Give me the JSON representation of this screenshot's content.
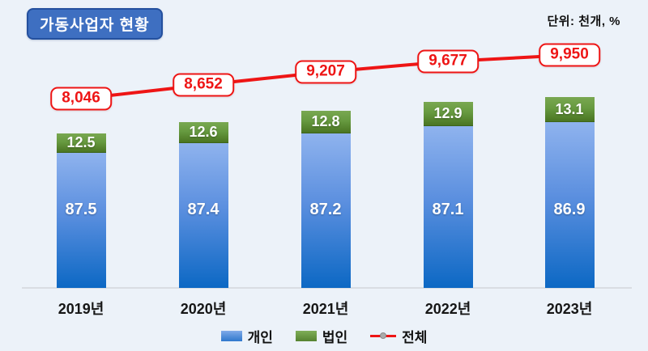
{
  "header": {
    "title": "가동사업자 현황",
    "unit_label": "단위: 천개, %"
  },
  "colors": {
    "background": "#ecf2f9",
    "title_bg": "#3e6fc1",
    "title_border": "#24509e",
    "bar_blue_top": "#8fb3ee",
    "bar_blue_bottom": "#0c68c4",
    "bar_green_top": "#79a851",
    "bar_green_bottom": "#4a7522",
    "line_red": "#ee1515",
    "axis_gray": "#d9dde3",
    "legend_marker_dot": "#ababab"
  },
  "chart_data": {
    "type": "bar",
    "subtype": "stacked-percentage-bars-with-total-line",
    "title": "가동사업자 현황",
    "unit_note": "단위: 천개, %",
    "categories": [
      "2019년",
      "2020년",
      "2021년",
      "2022년",
      "2023년"
    ],
    "series": [
      {
        "name": "개인",
        "type": "bar",
        "unit": "%",
        "color": "#3c7fd6",
        "values": [
          87.5,
          87.4,
          87.2,
          87.1,
          86.9
        ]
      },
      {
        "name": "법인",
        "type": "bar",
        "unit": "%",
        "color": "#5f9038",
        "values": [
          12.5,
          12.6,
          12.8,
          12.9,
          13.1
        ]
      },
      {
        "name": "전체",
        "type": "line",
        "unit": "천개",
        "color": "#ee1515",
        "values": [
          8046,
          8652,
          9207,
          9677,
          9950
        ],
        "labels": [
          "8,046",
          "8,652",
          "9,207",
          "9,677",
          "9,950"
        ]
      }
    ],
    "legend_position": "bottom",
    "grid": false,
    "bar_totals_scale_height": true
  }
}
